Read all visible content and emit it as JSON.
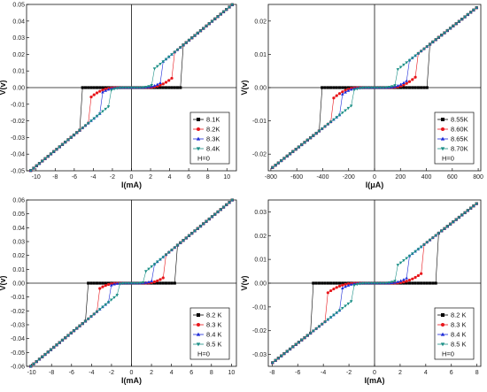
{
  "chart_data": [
    {
      "type": "scatter",
      "xlabel": "I(mA)",
      "ylabel": "V(v)",
      "xlim": [
        -11,
        11
      ],
      "ylim": [
        -0.05,
        0.05
      ],
      "xticks": [
        -10,
        -8,
        -6,
        -4,
        -2,
        0,
        2,
        4,
        6,
        8,
        10
      ],
      "yticks": [
        -0.05,
        -0.04,
        -0.03,
        -0.02,
        -0.01,
        0.0,
        0.01,
        0.02,
        0.03,
        0.04,
        0.05
      ],
      "tick_labels_y": [
        "-0.05",
        "-0.04",
        "-0.03",
        "-0.02",
        "-0.01",
        "0.00",
        "0.01",
        "0.02",
        "0.03",
        "0.04",
        "0.05"
      ],
      "slope": 0.00472,
      "legend_location": "bottom-right",
      "legend_note": "H=0",
      "series": [
        {
          "name": "8.1K",
          "color": "#000000",
          "marker": "square",
          "jump": 5.2,
          "bend": 2.0
        },
        {
          "name": "8.2K",
          "color": "#e8161b",
          "marker": "circle",
          "jump": 4.3,
          "bend": 1.8
        },
        {
          "name": "8.3K",
          "color": "#1c2bd8",
          "marker": "triangle-up",
          "jump": 3.1,
          "bend": 1.6
        },
        {
          "name": "8.4K",
          "color": "#1a8f86",
          "marker": "triangle-down",
          "jump": 2.2,
          "bend": 1.3
        }
      ]
    },
    {
      "type": "scatter",
      "xlabel": "I(μA)",
      "ylabel": "V(v)",
      "xlim": [
        -820,
        820
      ],
      "ylim": [
        -0.025,
        0.025
      ],
      "xticks": [
        -800,
        -600,
        -400,
        -200,
        0,
        200,
        400,
        600,
        800
      ],
      "yticks": [
        -0.02,
        -0.01,
        0.0,
        0.01,
        0.02
      ],
      "tick_labels_y": [
        "-0.02",
        "-0.01",
        "0.00",
        "0.01",
        "0.02"
      ],
      "slope": 3.05e-05,
      "legend_location": "bottom-right",
      "legend_note": "H=0",
      "series": [
        {
          "name": "8.55K",
          "color": "#000000",
          "marker": "square",
          "jump": 410,
          "bend": 130
        },
        {
          "name": "8.60K",
          "color": "#e8161b",
          "marker": "circle",
          "jump": 330,
          "bend": 120
        },
        {
          "name": "8.65K",
          "color": "#1c2bd8",
          "marker": "triangle-up",
          "jump": 250,
          "bend": 110
        },
        {
          "name": "8.70K",
          "color": "#1a8f86",
          "marker": "triangle-down",
          "jump": 160,
          "bend": 100
        }
      ]
    },
    {
      "type": "scatter",
      "xlabel": "I(mA)",
      "ylabel": "V(v)",
      "xlim": [
        -10.5,
        10.5
      ],
      "ylim": [
        -0.06,
        0.06
      ],
      "xticks": [
        -10,
        -8,
        -6,
        -4,
        -2,
        0,
        2,
        4,
        6,
        8,
        10
      ],
      "yticks": [
        -0.06,
        -0.05,
        -0.04,
        -0.03,
        -0.02,
        -0.01,
        0.0,
        0.01,
        0.02,
        0.03,
        0.04,
        0.05,
        0.06
      ],
      "tick_labels_y": [
        "-0.06",
        "-0.05",
        "-0.04",
        "-0.03",
        "-0.02",
        "-0.01",
        "0.00",
        "0.01",
        "0.02",
        "0.03",
        "0.04",
        "0.05",
        "0.06"
      ],
      "slope": 0.00595,
      "legend_location": "bottom-right",
      "legend_note": "H=0",
      "series": [
        {
          "name": "8.2 K",
          "color": "#000000",
          "marker": "square",
          "jump": 4.6,
          "bend": 1.9
        },
        {
          "name": "8.3 K",
          "color": "#e8161b",
          "marker": "circle",
          "jump": 3.4,
          "bend": 1.6
        },
        {
          "name": "8.4 K",
          "color": "#1c2bd8",
          "marker": "triangle-up",
          "jump": 2.3,
          "bend": 1.3
        },
        {
          "name": "8.5 K",
          "color": "#1a8f86",
          "marker": "triangle-down",
          "jump": 1.4,
          "bend": 1.0
        }
      ]
    },
    {
      "type": "scatter",
      "xlabel": "I(mA)",
      "ylabel": "V(v)",
      "xlim": [
        -8.3,
        8.3
      ],
      "ylim": [
        -0.035,
        0.035
      ],
      "xticks": [
        -8,
        -6,
        -4,
        -2,
        0,
        2,
        4,
        6,
        8
      ],
      "yticks": [
        -0.03,
        -0.02,
        -0.01,
        0.0,
        0.01,
        0.02,
        0.03
      ],
      "tick_labels_y": [
        "-0.03",
        "-0.02",
        "-0.01",
        "0.00",
        "0.01",
        "0.02",
        "0.03"
      ],
      "slope": 0.0042,
      "legend_location": "bottom-right",
      "legend_note": "H=0",
      "series": [
        {
          "name": "8.2 K",
          "color": "#000000",
          "marker": "square",
          "jump": 4.8,
          "bend": 1.9
        },
        {
          "name": "8.3 K",
          "color": "#e8161b",
          "marker": "circle",
          "jump": 3.8,
          "bend": 1.6
        },
        {
          "name": "8.4 K",
          "color": "#1c2bd8",
          "marker": "triangle-up",
          "jump": 2.6,
          "bend": 1.3
        },
        {
          "name": "8.5 K",
          "color": "#1a8f86",
          "marker": "triangle-down",
          "jump": 1.7,
          "bend": 1.0
        }
      ]
    }
  ]
}
